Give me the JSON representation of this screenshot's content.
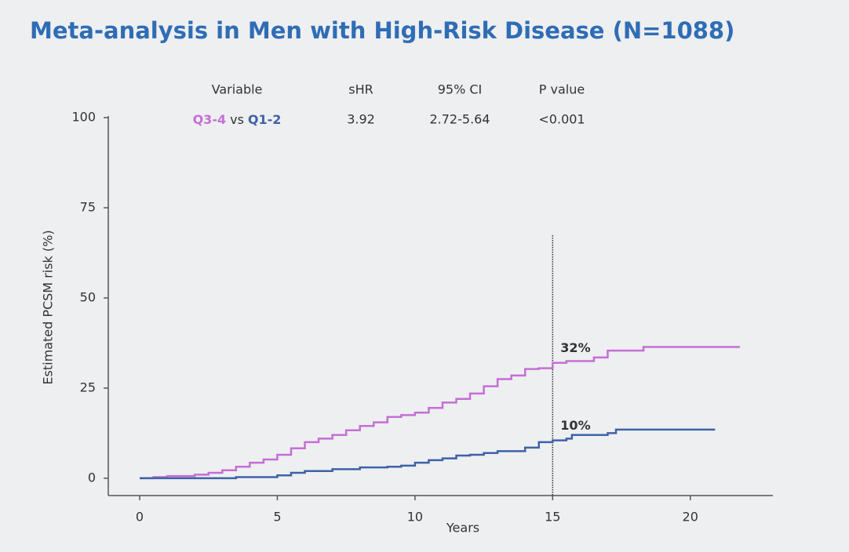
{
  "chart_data": {
    "type": "step",
    "title": "Meta-analysis in Men with High-Risk Disease (N=1088)",
    "x_label": "Years",
    "y_label": "Estimated PCSM risk (%)",
    "xlim": [
      -1.14,
      23.0
    ],
    "ylim": [
      -4.8,
      100
    ],
    "xticks": [
      0,
      5,
      10,
      15,
      20
    ],
    "yticks": [
      0,
      25,
      50,
      75,
      100
    ],
    "reference_x": 15,
    "table": {
      "columns": [
        "Variable",
        "sHR",
        "95% CI",
        "P value"
      ],
      "cells": [
        [
          "Q3-4",
          "vs",
          "Q1-2"
        ],
        "3.92",
        "2.72-5.64",
        "<0.001"
      ]
    },
    "series": [
      {
        "name": "Q3-4",
        "color": "#c46fd4",
        "label": "32%",
        "x": [
          0,
          0.5,
          1,
          2,
          2.5,
          3,
          3.5,
          4,
          4.5,
          5,
          5.5,
          6,
          6.5,
          7,
          7.5,
          8,
          8.5,
          9,
          9.5,
          10,
          10.5,
          11,
          11.5,
          12,
          12.5,
          13,
          13.5,
          14,
          14.5,
          15,
          15.5,
          16.5,
          17,
          18.3,
          21.8
        ],
        "values": [
          0,
          0.3,
          0.6,
          1,
          1.5,
          2.2,
          3.2,
          4.3,
          5.2,
          6.5,
          8.3,
          10,
          11,
          12,
          13.3,
          14.5,
          15.5,
          17,
          17.5,
          18.2,
          19.5,
          21,
          22,
          23.5,
          25.5,
          27.5,
          28.5,
          30.3,
          30.5,
          32,
          32.5,
          33.5,
          35.4,
          36.4,
          36.4
        ]
      },
      {
        "name": "Q1-2",
        "color": "#3e62a8",
        "label": "10%",
        "x": [
          0,
          3,
          3.5,
          5,
          5.5,
          6,
          7,
          8,
          9,
          9.5,
          10,
          10.5,
          11,
          11.5,
          12,
          12.5,
          13,
          14,
          14.5,
          15,
          15.5,
          15.7,
          17,
          17.3,
          20.9
        ],
        "values": [
          0,
          0,
          0.3,
          0.8,
          1.5,
          2,
          2.5,
          3,
          3.2,
          3.5,
          4.3,
          5,
          5.5,
          6.3,
          6.5,
          7,
          7.5,
          8.5,
          10,
          10.5,
          11,
          12,
          12.5,
          13.5,
          13.5
        ]
      }
    ]
  }
}
